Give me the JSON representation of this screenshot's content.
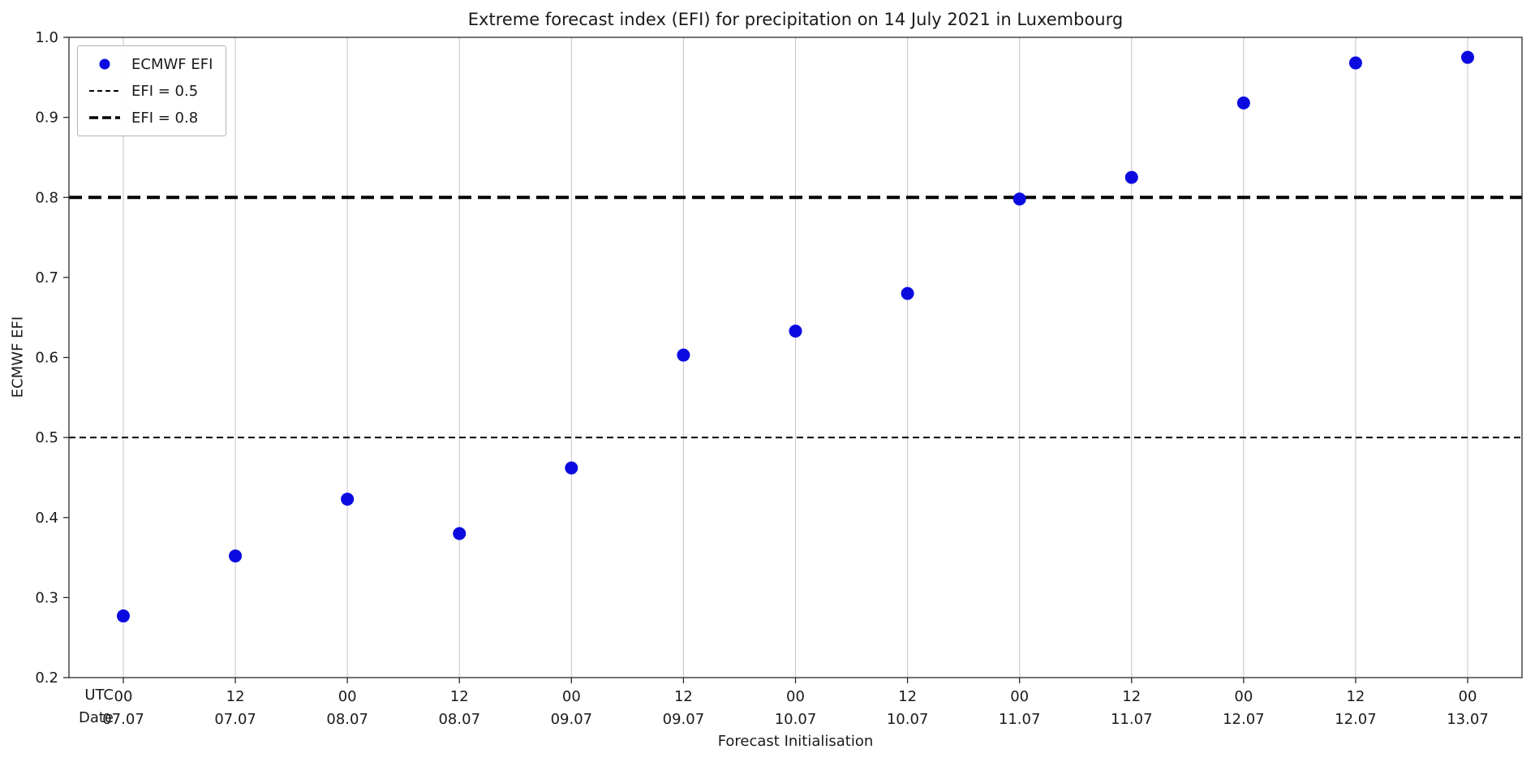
{
  "chart_data": {
    "type": "scatter",
    "title": "Extreme forecast index (EFI) for precipitation on 14 July 2021 in Luxembourg",
    "xlabel": "Forecast Initialisation",
    "ylabel": "ECMWF EFI",
    "ylim": [
      0.2,
      1.0
    ],
    "yticks": [
      0.2,
      0.3,
      0.4,
      0.5,
      0.6,
      0.7,
      0.8,
      0.9,
      1.0
    ],
    "x_tick_rows": {
      "utc_label": "UTC",
      "date_label": "Date"
    },
    "categories_utc": [
      "00",
      "12",
      "00",
      "12",
      "00",
      "12",
      "00",
      "12",
      "00",
      "12",
      "00",
      "12",
      "00"
    ],
    "categories_date": [
      "07.07",
      "07.07",
      "08.07",
      "08.07",
      "09.07",
      "09.07",
      "10.07",
      "10.07",
      "11.07",
      "11.07",
      "12.07",
      "12.07",
      "13.07"
    ],
    "values": [
      0.277,
      0.352,
      0.423,
      0.38,
      0.462,
      0.603,
      0.633,
      0.68,
      0.798,
      0.825,
      0.918,
      0.968,
      0.975
    ],
    "reference_lines": [
      {
        "label": "EFI = 0.5",
        "y": 0.5,
        "style": "dashed-thin"
      },
      {
        "label": "EFI = 0.8",
        "y": 0.8,
        "style": "dashed-thick"
      }
    ],
    "legend": [
      {
        "label": "ECMWF EFI",
        "marker": "dot"
      },
      {
        "label": "EFI = 0.5",
        "marker": "dashed-thin"
      },
      {
        "label": "EFI = 0.8",
        "marker": "dashed-thick"
      }
    ],
    "point_color": "#0b0be0",
    "grid": "vertical-only",
    "grid_color": "#c4c4c4",
    "legend_position": "upper-left"
  }
}
